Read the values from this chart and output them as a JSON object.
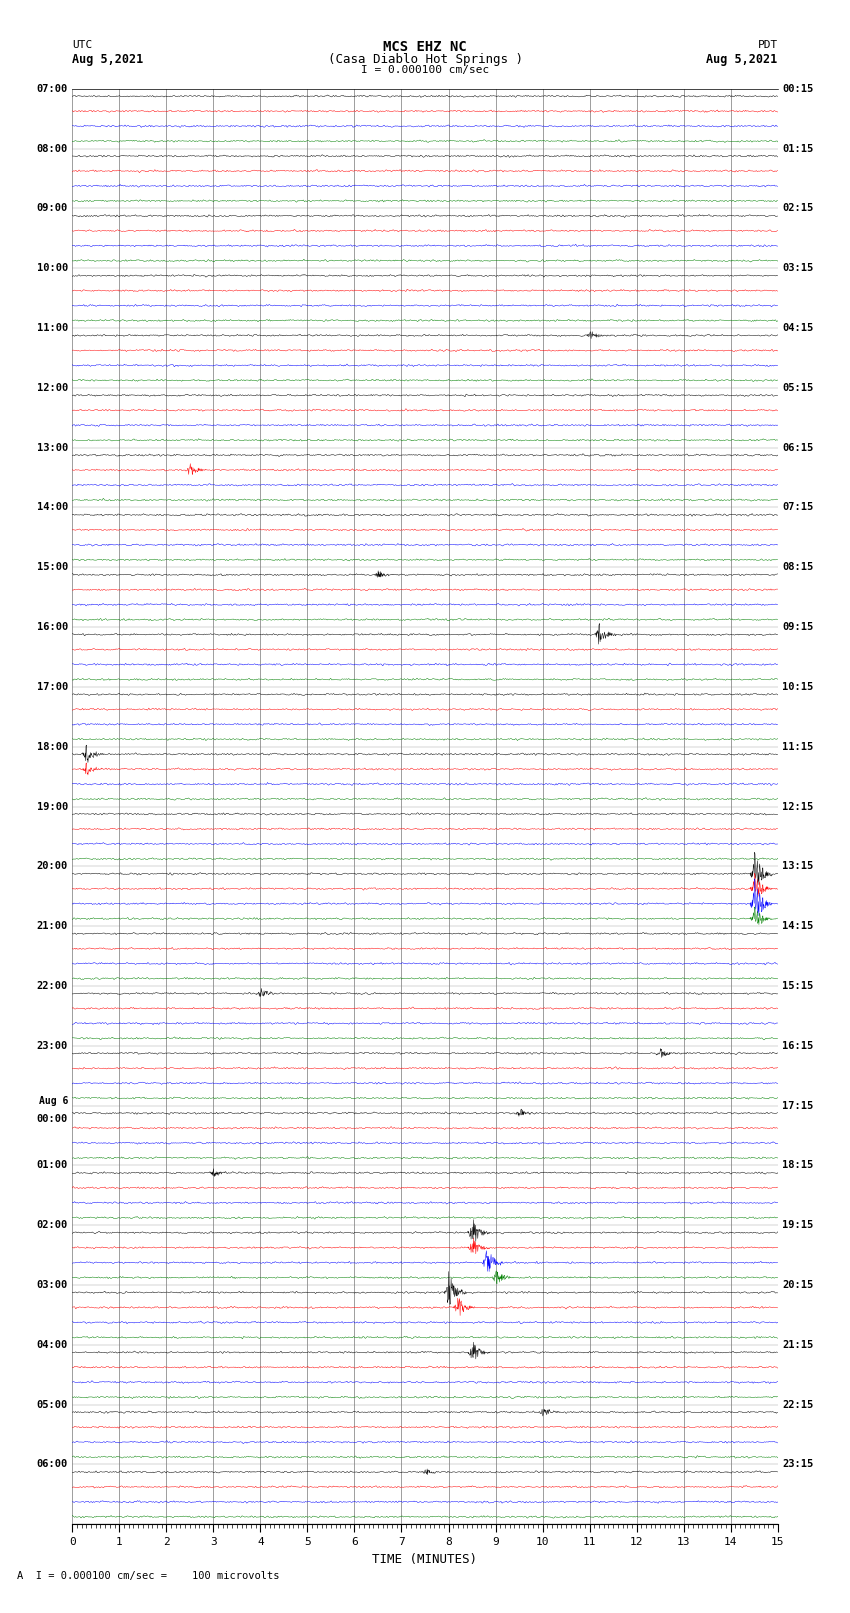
{
  "title_line1": "MCS EHZ NC",
  "title_line2": "(Casa Diablo Hot Springs )",
  "scale_label": "I = 0.000100 cm/sec",
  "bottom_label": "A  I = 0.000100 cm/sec =    100 microvolts",
  "xlabel": "TIME (MINUTES)",
  "utc_label": "UTC",
  "utc_date": "Aug 5,2021",
  "pdt_label": "PDT",
  "pdt_date": "Aug 5,2021",
  "left_times_hourly": [
    "07:00",
    "08:00",
    "09:00",
    "10:00",
    "11:00",
    "12:00",
    "13:00",
    "14:00",
    "15:00",
    "16:00",
    "17:00",
    "18:00",
    "19:00",
    "20:00",
    "21:00",
    "22:00",
    "23:00",
    "Aug 6\n00:00",
    "01:00",
    "02:00",
    "03:00",
    "04:00",
    "05:00",
    "06:00"
  ],
  "right_times_hourly": [
    "00:15",
    "01:15",
    "02:15",
    "03:15",
    "04:15",
    "05:15",
    "06:15",
    "07:15",
    "08:15",
    "09:15",
    "10:15",
    "11:15",
    "12:15",
    "13:15",
    "14:15",
    "15:15",
    "16:15",
    "17:15",
    "18:15",
    "19:15",
    "20:15",
    "21:15",
    "22:15",
    "23:15"
  ],
  "colors": [
    "black",
    "red",
    "blue",
    "green"
  ],
  "bg_color": "white",
  "n_rows": 96,
  "n_points": 1800,
  "xmin": 0,
  "xmax": 15,
  "noise_amp": 0.12,
  "lw": 0.35
}
